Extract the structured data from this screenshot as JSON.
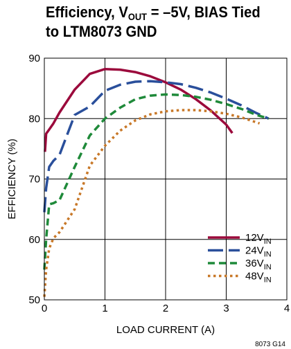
{
  "chart_data": {
    "type": "line",
    "title_main": "Efficiency, V",
    "title_sub": "OUT",
    "title_rest": " = –5V, BIAS Tied",
    "title_line2": "to LTM8073 GND",
    "xlabel": "LOAD CURRENT (A)",
    "ylabel": "EFFICIENCY (%)",
    "xlim": [
      0,
      4
    ],
    "ylim": [
      50,
      90
    ],
    "xticks": [
      "0",
      "1",
      "2",
      "3",
      "4"
    ],
    "yticks": [
      "50",
      "60",
      "70",
      "80",
      "90"
    ],
    "grid": true,
    "legend_position": "bottom-right",
    "footnote": "8073 G14",
    "series": [
      {
        "name": "12V",
        "name_sub": "IN",
        "color": "#9b0a3c",
        "dash": "solid",
        "x": [
          0.01,
          0.03,
          0.08,
          0.15,
          0.25,
          0.5,
          0.75,
          1.0,
          1.25,
          1.5,
          1.75,
          2.0,
          2.25,
          2.5,
          2.75,
          3.0,
          3.1
        ],
        "y": [
          74.5,
          77.5,
          78.2,
          79.2,
          81.0,
          84.8,
          87.4,
          88.2,
          88.1,
          87.7,
          87.0,
          86.0,
          84.8,
          83.2,
          81.3,
          79.0,
          77.6
        ]
      },
      {
        "name": "24V",
        "name_sub": "IN",
        "color": "#2a4f9b",
        "dash": "long",
        "x": [
          0.0,
          0.03,
          0.08,
          0.15,
          0.25,
          0.5,
          0.75,
          1.0,
          1.25,
          1.5,
          1.75,
          2.0,
          2.25,
          2.5,
          2.75,
          3.0,
          3.25,
          3.5,
          3.7
        ],
        "y": [
          64.5,
          68.5,
          72.0,
          73.0,
          74.0,
          80.6,
          82.0,
          84.6,
          85.6,
          86.1,
          86.2,
          86.0,
          85.7,
          85.1,
          84.3,
          83.3,
          82.2,
          80.9,
          80.0
        ]
      },
      {
        "name": "36V",
        "name_sub": "IN",
        "color": "#1f8a3a",
        "dash": "medium",
        "x": [
          0.0,
          0.03,
          0.08,
          0.15,
          0.25,
          0.5,
          0.75,
          1.0,
          1.25,
          1.5,
          1.75,
          2.0,
          2.25,
          2.5,
          2.75,
          3.0,
          3.25,
          3.5,
          3.7
        ],
        "y": [
          55.0,
          60.0,
          65.8,
          66.0,
          66.5,
          72.0,
          77.2,
          80.0,
          81.8,
          83.2,
          83.8,
          84.0,
          83.9,
          83.6,
          83.1,
          82.4,
          81.6,
          80.6,
          80.0
        ]
      },
      {
        "name": "48V",
        "name_sub": "IN",
        "color": "#c87828",
        "dash": "dotted",
        "x": [
          0.0,
          0.03,
          0.08,
          0.15,
          0.25,
          0.5,
          0.75,
          1.0,
          1.25,
          1.5,
          1.75,
          2.0,
          2.25,
          2.5,
          2.75,
          3.0,
          3.25,
          3.55
        ],
        "y": [
          50.5,
          55.0,
          58.5,
          60.2,
          61.2,
          65.0,
          72.2,
          75.5,
          78.0,
          79.7,
          80.7,
          81.2,
          81.4,
          81.4,
          81.2,
          80.8,
          80.2,
          79.2
        ]
      }
    ]
  }
}
